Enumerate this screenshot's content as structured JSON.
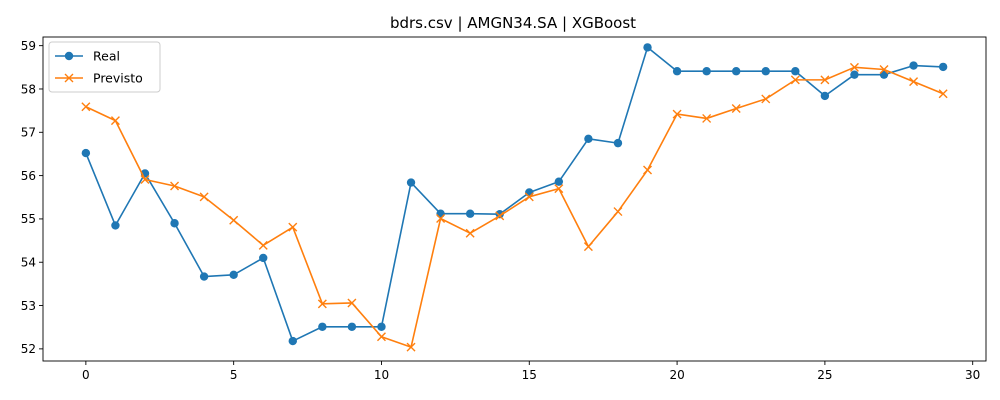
{
  "chart_data": {
    "type": "line",
    "title": "bdrs.csv | AMGN34.SA | XGBoost",
    "xlabel": "",
    "ylabel": "",
    "xlim": [
      -1.45,
      30.45
    ],
    "ylim": [
      51.72,
      59.2
    ],
    "xticks": [
      0,
      5,
      10,
      15,
      20,
      25,
      30
    ],
    "yticks": [
      52,
      53,
      54,
      55,
      56,
      57,
      58,
      59
    ],
    "grid": false,
    "legend_position": "top-left",
    "x": [
      0,
      1,
      2,
      3,
      4,
      5,
      6,
      7,
      8,
      9,
      10,
      11,
      12,
      13,
      14,
      15,
      16,
      17,
      18,
      19,
      20,
      21,
      22,
      23,
      24,
      25,
      26,
      27,
      28,
      29
    ],
    "series": [
      {
        "name": "Real",
        "color": "#1f77b4",
        "marker": "circle",
        "values": [
          56.52,
          54.85,
          56.05,
          54.9,
          53.67,
          53.71,
          54.1,
          52.18,
          52.51,
          52.51,
          52.51,
          55.84,
          55.12,
          55.12,
          55.11,
          55.61,
          55.86,
          56.85,
          56.75,
          58.96,
          58.41,
          58.41,
          58.41,
          58.41,
          58.41,
          57.84,
          58.33,
          58.33,
          58.54,
          58.51
        ]
      },
      {
        "name": "Previsto",
        "color": "#ff7f0e",
        "marker": "x",
        "values": [
          57.59,
          57.27,
          55.91,
          55.76,
          55.51,
          54.97,
          54.39,
          54.81,
          53.04,
          53.06,
          52.28,
          52.04,
          55.01,
          54.67,
          55.07,
          55.51,
          55.7,
          54.36,
          55.17,
          56.13,
          57.42,
          57.32,
          57.55,
          57.77,
          58.21,
          58.21,
          58.5,
          58.45,
          58.17,
          57.89
        ]
      }
    ]
  }
}
